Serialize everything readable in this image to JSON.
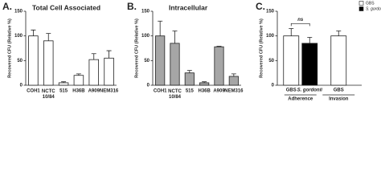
{
  "chart_data": [
    {
      "type": "bar",
      "panel_label": "A.",
      "title": "Total Cell Associated",
      "y_label": "Recovered CFU (Relative %)",
      "categories": [
        "COH1",
        "NCTC 10/84",
        "515",
        "H36B",
        "A909",
        "NEM316"
      ],
      "values": [
        100,
        90,
        5,
        20,
        52,
        55
      ],
      "errors": [
        12,
        15,
        2,
        3,
        12,
        15
      ],
      "color": "#ffffff",
      "ylim": [
        0,
        150
      ],
      "yticks": [
        0,
        50,
        100,
        150
      ]
    },
    {
      "type": "bar",
      "panel_label": "B.",
      "title": "Intracellular",
      "y_label": "Recovered CFU (Relative %)",
      "categories": [
        "COH1",
        "NCTC 10/84",
        "515",
        "H36B",
        "A909",
        "NEM316"
      ],
      "values": [
        100,
        85,
        25,
        5,
        78,
        18
      ],
      "errors": [
        30,
        25,
        5,
        2,
        1,
        5
      ],
      "color": "#a6a6a6",
      "ylim": [
        0,
        150
      ],
      "yticks": [
        0,
        50,
        100,
        150
      ]
    },
    {
      "type": "grouped_bar",
      "panel_label": "C.",
      "y_label": "Recovered CFU (Relative %)",
      "categories": [
        "Adherence",
        "Invasion"
      ],
      "series": [
        {
          "name": "GBS",
          "color": "#ffffff",
          "values": [
            100,
            100
          ],
          "errors": [
            15,
            10
          ]
        },
        {
          "name": "S. gordonii",
          "color": "#000000",
          "values": [
            85,
            null
          ],
          "errors": [
            12,
            null
          ]
        }
      ],
      "annotations": [
        "ns"
      ],
      "legend": "top-right",
      "ylim": [
        0,
        150
      ],
      "yticks": [
        0,
        50,
        100,
        150
      ]
    }
  ]
}
